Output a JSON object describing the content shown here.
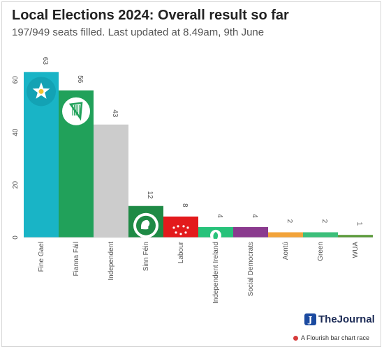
{
  "header": {
    "title": "Local Elections 2024: Overall result so far",
    "subtitle": "197/949 seats filled. Last updated at 8.49am, 9th June"
  },
  "footer": {
    "brand": "TheJournal",
    "brand_icon": "journal-logo-icon",
    "credit": "A Flourish bar chart race"
  },
  "chart_data": {
    "type": "bar",
    "categories": [
      "Fine Gael",
      "Fianna Fáil",
      "Independent",
      "Sinn Féin",
      "Labour",
      "Independent Ireland",
      "Social Democrats",
      "Aontú",
      "Green",
      "WUA"
    ],
    "values": [
      63,
      56,
      43,
      12,
      8,
      4,
      4,
      2,
      2,
      1
    ],
    "colors": [
      "#19b4c6",
      "#21a15a",
      "#cccccc",
      "#1e8a45",
      "#e31a1c",
      "#27c27a",
      "#8a3a8e",
      "#f2a33a",
      "#3cbf7a",
      "#5a9a3a"
    ],
    "party_icons": [
      "fine-gael-star-logo",
      "fianna-fail-harp-logo",
      "",
      "sinn-fein-logo",
      "labour-rose-logo",
      "independent-ireland-logo",
      "",
      "",
      "",
      ""
    ],
    "yticks": [
      0,
      20,
      40,
      60
    ],
    "ylim": [
      0,
      66
    ],
    "grid": false,
    "legend": "none"
  }
}
